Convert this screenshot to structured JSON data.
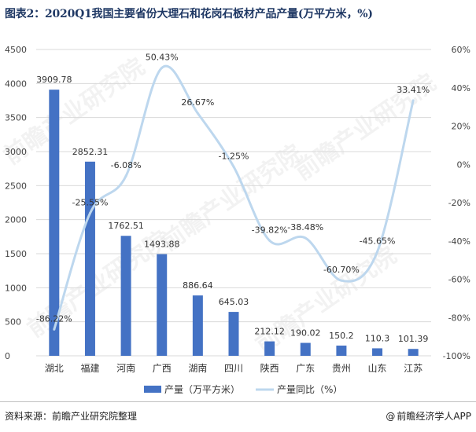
{
  "title": "图表2：2020Q1我国主要省份大理石和花岗石板材产品产量(万平方米，%)",
  "footer": {
    "source": "资料来源：前瞻产业研究院整理",
    "brand": "前瞻经济学人APP",
    "brand_symbol": "@"
  },
  "watermark": "前瞻产业研究院",
  "colors": {
    "bar": "#4472c4",
    "line": "#bdd7ee",
    "grid": "#d9d9d9",
    "text": "#333333"
  },
  "chart_data": {
    "type": "bar",
    "categories": [
      "湖北",
      "福建",
      "河南",
      "广西",
      "湖南",
      "四川",
      "陕西",
      "广东",
      "贵州",
      "山东",
      "江苏"
    ],
    "series": [
      {
        "name": "产量（万平方米）",
        "type": "bar",
        "axis": "left",
        "values": [
          3909.78,
          2852.31,
          1762.51,
          1493.88,
          886.64,
          645.03,
          212.12,
          190.02,
          150.2,
          110.3,
          101.39
        ],
        "labels": [
          "3909.78",
          "2852.31",
          "1762.51",
          "1493.88",
          "886.64",
          "645.03",
          "212.12",
          "190.02",
          "150.2",
          "110.3",
          "101.39"
        ]
      },
      {
        "name": "产量同比（%）",
        "type": "line",
        "axis": "right",
        "values": [
          -86.22,
          -25.55,
          -6.08,
          50.43,
          26.67,
          -1.25,
          -39.82,
          -38.48,
          -60.7,
          -45.65,
          33.41
        ],
        "labels": [
          "-86.22%",
          "-25.55%",
          "-6.08%",
          "50.43%",
          "26.67%",
          "-1.25%",
          "-39.82%",
          "-38.48%",
          "-60.70%",
          "-45.65%",
          "33.41%"
        ]
      }
    ],
    "y_left": {
      "min": 0,
      "max": 4500,
      "ticks": [
        "0",
        "500",
        "1000",
        "1500",
        "2000",
        "2500",
        "3000",
        "3500",
        "4000",
        "4500"
      ]
    },
    "y_right": {
      "min": -100,
      "max": 60,
      "ticks": [
        "-100%",
        "-80%",
        "-60%",
        "-40%",
        "-20%",
        "0%",
        "20%",
        "40%",
        "60%"
      ]
    },
    "legend_position": "bottom"
  }
}
